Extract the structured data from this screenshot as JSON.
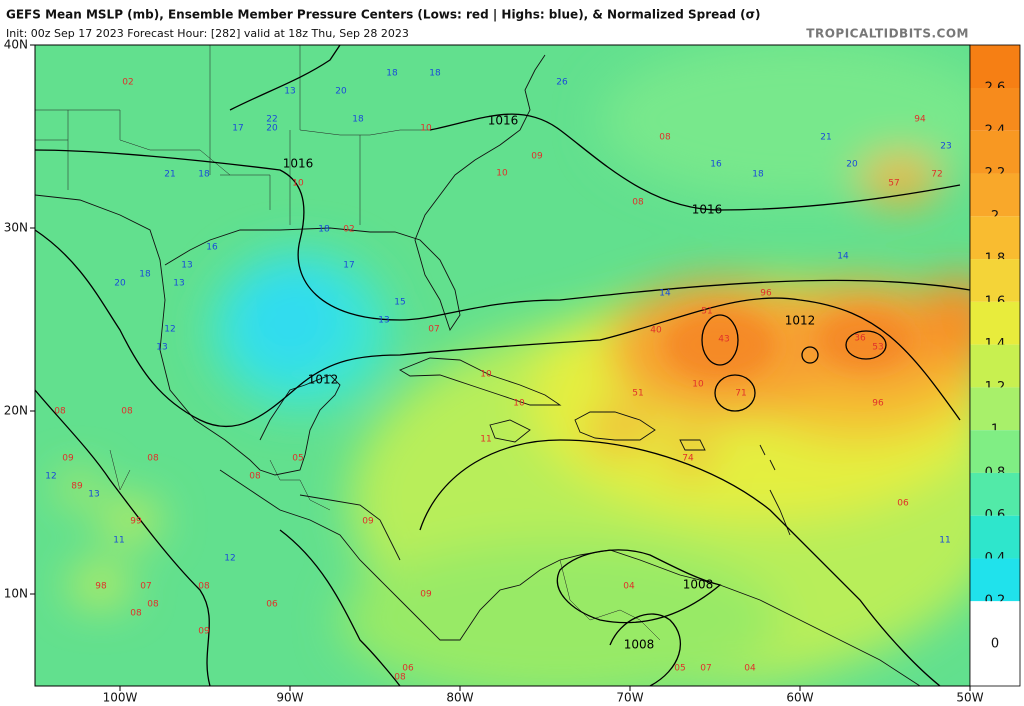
{
  "header": {
    "title": "GEFS Mean MSLP (mb), Ensemble Member Pressure Centers (Lows: red | Highs: blue), & Normalized Spread (σ)",
    "subtitle": "Init: 00z Sep 17 2023   Forecast Hour: [282]   valid at 18z Thu, Sep 28 2023",
    "source": "TROPICALTIDBITS.COM"
  },
  "map": {
    "lat_labels": [
      "40N",
      "30N",
      "20N",
      "10N"
    ],
    "lon_labels": [
      "100W",
      "90W",
      "80W",
      "70W",
      "60W",
      "50W"
    ],
    "isobar_labels": [
      "1016",
      "1016",
      "1016",
      "1012",
      "1012",
      "1008",
      "1008"
    ],
    "lows": [
      "02",
      "10",
      "10",
      "08",
      "09",
      "10",
      "08",
      "94",
      "57",
      "72",
      "02",
      "07",
      "40",
      "51",
      "43",
      "10",
      "71",
      "51",
      "96",
      "36",
      "53",
      "96",
      "10",
      "10",
      "11",
      "74",
      "89",
      "99",
      "98",
      "07",
      "08",
      "08",
      "08",
      "09",
      "06",
      "09",
      "06",
      "08",
      "06",
      "04",
      "05",
      "07",
      "04",
      "09",
      "08",
      "09",
      "08",
      "08",
      "05",
      "08"
    ],
    "highs": [
      "18",
      "18",
      "13",
      "20",
      "26",
      "22",
      "20",
      "17",
      "18",
      "21",
      "20",
      "23",
      "16",
      "18",
      "21",
      "18",
      "18",
      "16",
      "13",
      "18",
      "20",
      "13",
      "17",
      "15",
      "13",
      "12",
      "13",
      "14",
      "14",
      "13",
      "11",
      "12",
      "11",
      "12"
    ]
  },
  "colorbar": {
    "ticks": [
      "2.6",
      "2.4",
      "2.2",
      "2",
      "1.8",
      "1.6",
      "1.4",
      "1.2",
      "1",
      "0.8",
      "0.6",
      "0.4",
      "0.2",
      "0"
    ]
  }
}
